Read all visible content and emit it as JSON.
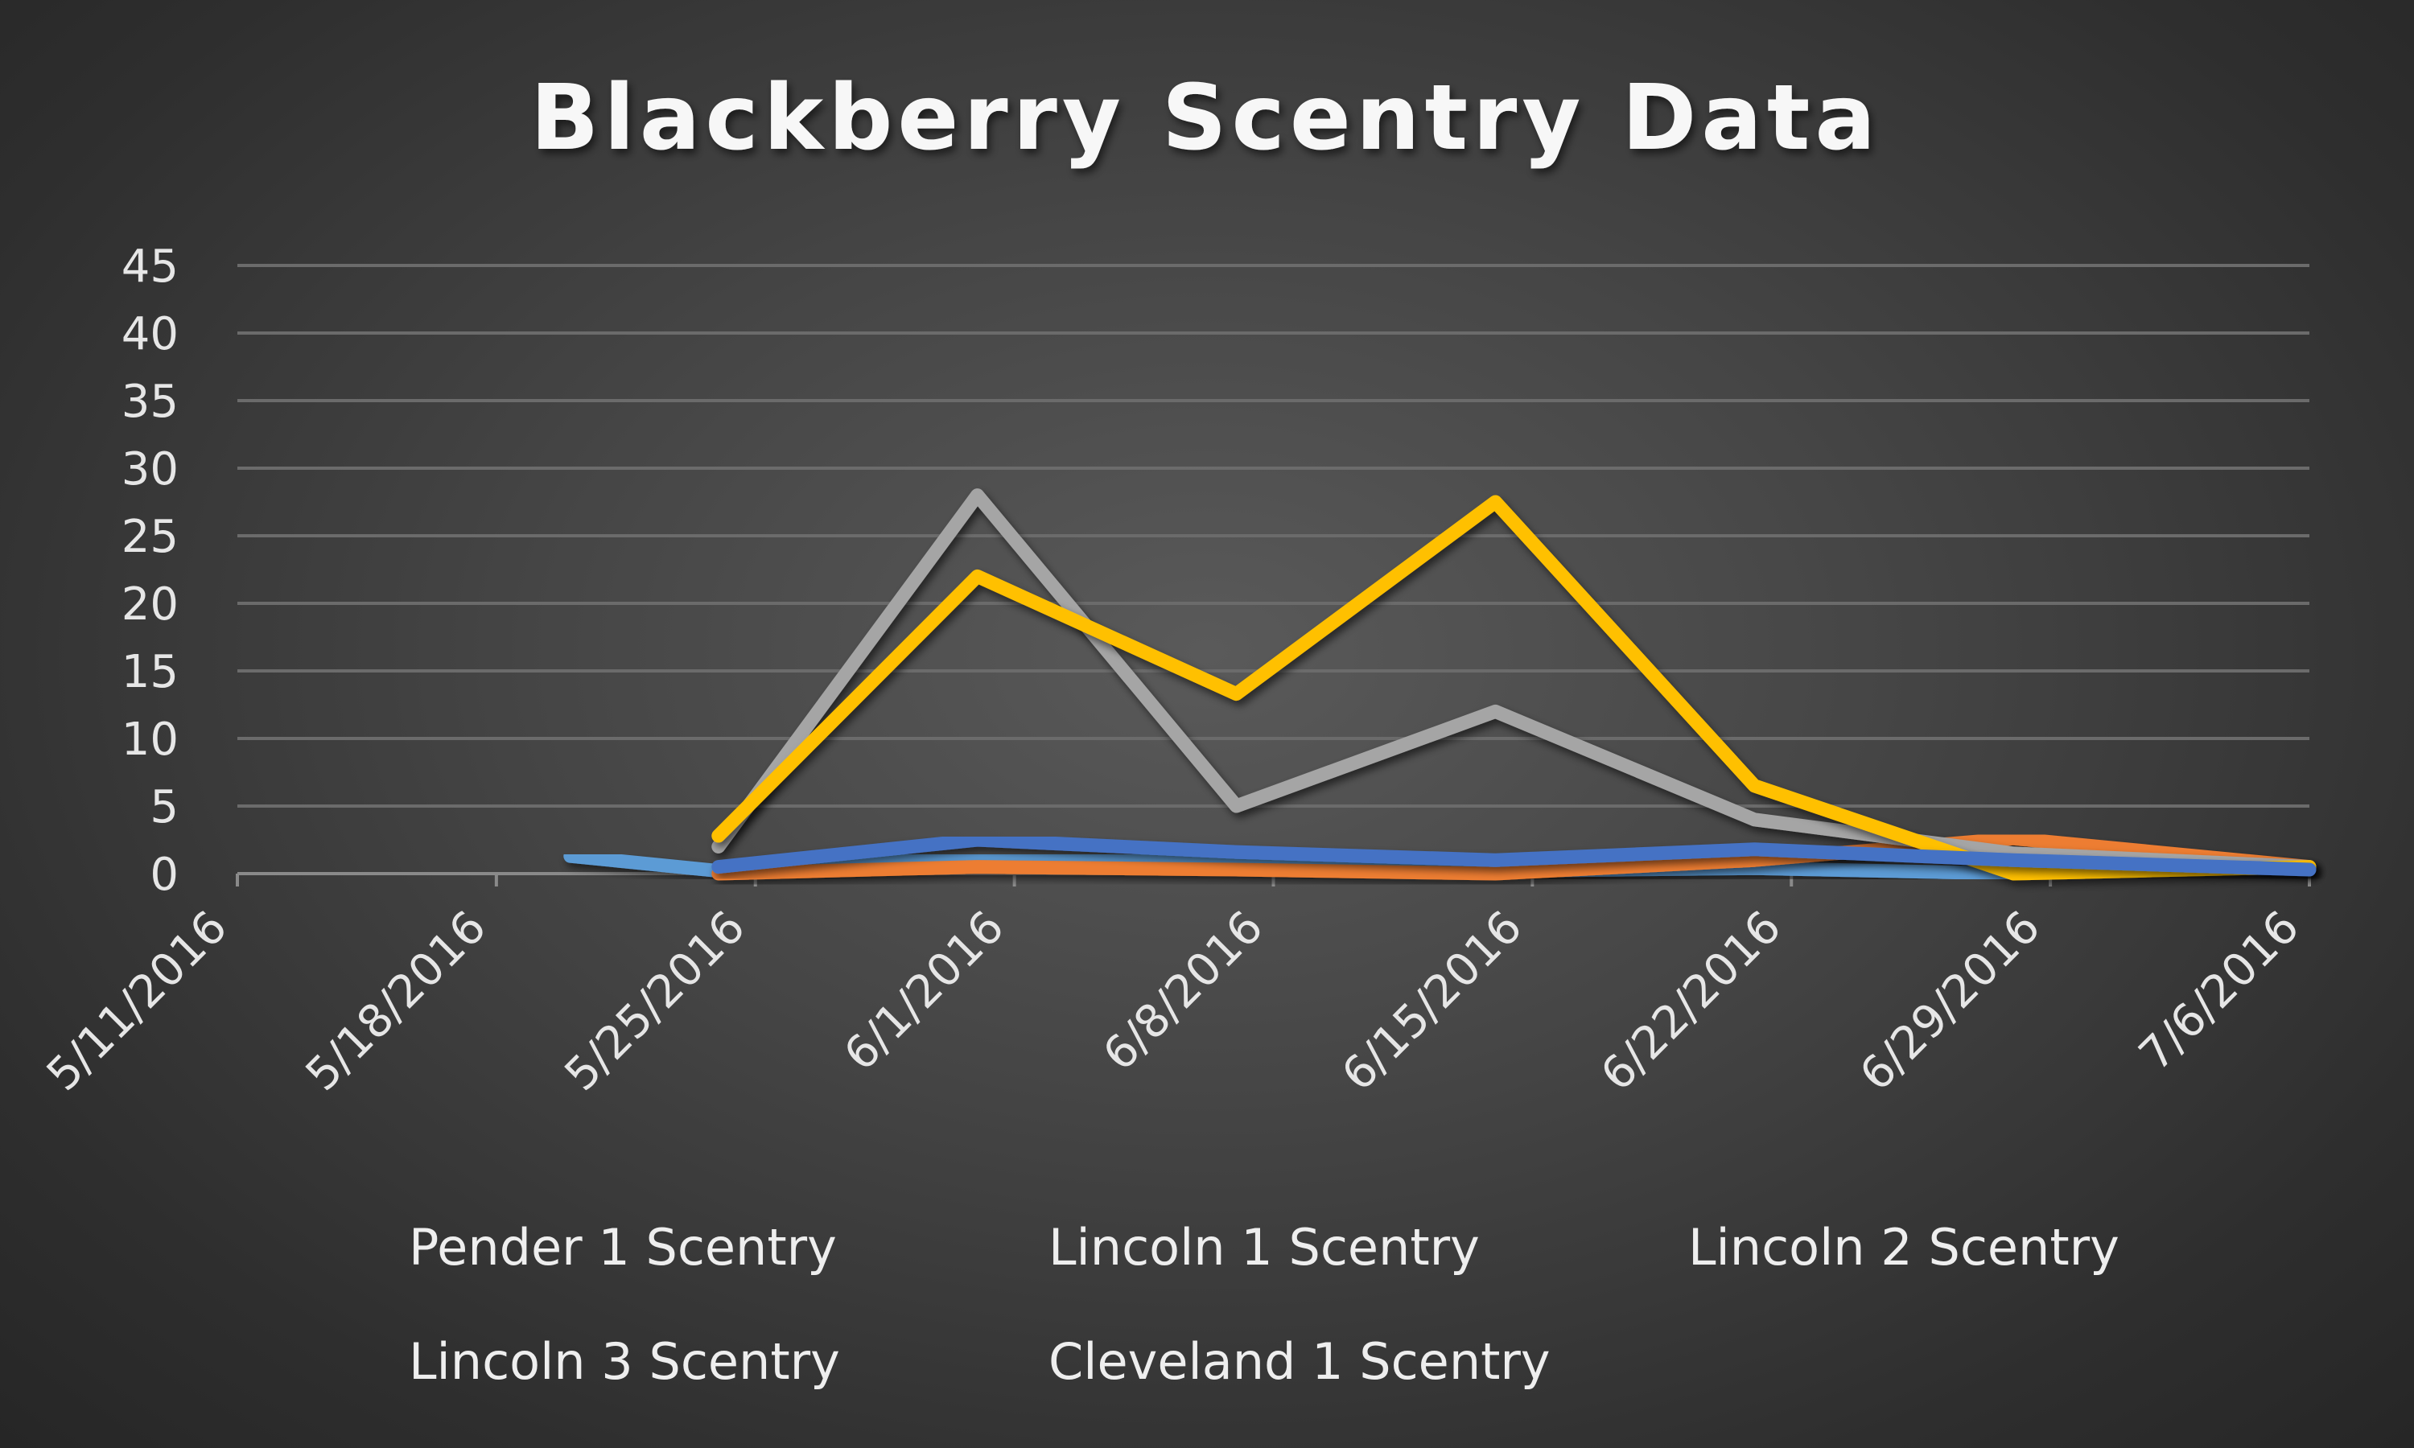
{
  "chart_data": {
    "type": "line",
    "title": "Blackberry Scentry Data",
    "xlabel": "",
    "ylabel": "",
    "x_ticks": [
      "5/11/2016",
      "5/18/2016",
      "5/25/2016",
      "6/1/2016",
      "6/8/2016",
      "6/15/2016",
      "6/22/2016",
      "6/29/2016",
      "7/6/2016"
    ],
    "y_ticks": [
      0,
      5,
      10,
      15,
      20,
      25,
      30,
      35,
      40,
      45
    ],
    "ylim": [
      0,
      45
    ],
    "grid": true,
    "legend_position": "bottom",
    "series": [
      {
        "name": "Pender 1 Scentry",
        "color": "#5b9bd5",
        "points": [
          [
            "5/20/2016",
            1.3
          ],
          [
            "5/24/2016",
            0.2
          ],
          [
            "5/31/2016",
            1.2
          ],
          [
            "6/7/2016",
            0.8
          ],
          [
            "6/14/2016",
            0.2
          ],
          [
            "6/21/2016",
            0.4
          ],
          [
            "6/28/2016",
            0
          ]
        ]
      },
      {
        "name": "Lincoln 1 Scentry",
        "color": "#ed7d31",
        "points": [
          [
            "5/24/2016",
            0
          ],
          [
            "5/31/2016",
            0.5
          ],
          [
            "6/7/2016",
            0.3
          ],
          [
            "6/14/2016",
            0
          ],
          [
            "6/21/2016",
            1.0
          ],
          [
            "6/28/2016",
            2.6
          ],
          [
            "7/6/2016",
            0.5
          ]
        ]
      },
      {
        "name": "Lincoln 2 Scentry",
        "color": "#a5a5a5",
        "points": [
          [
            "5/24/2016",
            2
          ],
          [
            "5/31/2016",
            28
          ],
          [
            "6/7/2016",
            5
          ],
          [
            "6/14/2016",
            12
          ],
          [
            "6/21/2016",
            4
          ],
          [
            "6/28/2016",
            1.5
          ],
          [
            "7/6/2016",
            0.5
          ]
        ]
      },
      {
        "name": "Lincoln 3 Scentry",
        "color": "#ffc000",
        "points": [
          [
            "5/24/2016",
            2.8
          ],
          [
            "5/31/2016",
            22
          ],
          [
            "6/7/2016",
            13.3
          ],
          [
            "6/14/2016",
            27.5
          ],
          [
            "6/21/2016",
            6.5
          ],
          [
            "6/28/2016",
            0
          ],
          [
            "7/6/2016",
            0.5
          ]
        ]
      },
      {
        "name": "Cleveland 1 Scentry",
        "color": "#4472c4",
        "points": [
          [
            "5/24/2016",
            0.5
          ],
          [
            "5/31/2016",
            2.5
          ],
          [
            "6/7/2016",
            1.6
          ],
          [
            "6/14/2016",
            1.0
          ],
          [
            "6/21/2016",
            1.8
          ],
          [
            "6/28/2016",
            1.0
          ],
          [
            "7/6/2016",
            0.3
          ]
        ]
      }
    ]
  }
}
